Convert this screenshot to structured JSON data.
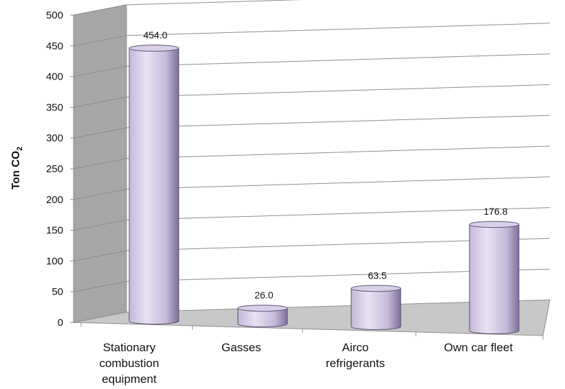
{
  "chart_data": {
    "type": "bar",
    "style": "3d-cylinder",
    "categories": [
      [
        "Stationary",
        "combustion",
        "equipment"
      ],
      [
        "Gasses"
      ],
      [
        "Airco",
        "refrigerants"
      ],
      [
        "Own car fleet"
      ]
    ],
    "values": [
      454.0,
      26.0,
      63.5,
      176.8
    ],
    "value_labels": [
      "454.0",
      "26.0",
      "63.5",
      "176.8"
    ],
    "ylabel": {
      "main": "Ton CO",
      "subscript": "2"
    },
    "ylim": [
      0,
      500
    ],
    "y_ticks": [
      0,
      50,
      100,
      150,
      200,
      250,
      300,
      350,
      400,
      450,
      500
    ],
    "grid": true,
    "colors": {
      "bar_light": "#e8e2f2",
      "bar_mid": "#c4b8d8",
      "bar_dark": "#7e6f9a",
      "bar_top": "#d9d0e8",
      "bar_outline": "#5a4f70",
      "side_wall": "#a6a6a6",
      "floor": "#c8c8c8",
      "gridline": "#8c8c8c"
    }
  }
}
